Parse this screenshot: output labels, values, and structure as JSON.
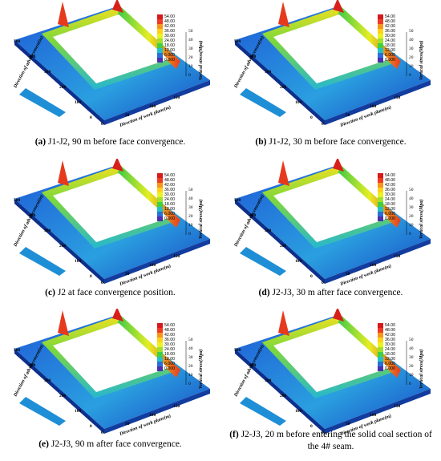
{
  "legend": {
    "ticks": [
      "54.00",
      "48.00",
      "42.00",
      "36.00",
      "30.00",
      "24.00",
      "18.00",
      "12.00",
      "6.000",
      "0.000"
    ],
    "title": "Vertical stress(Mpa)",
    "colors": [
      "#d7191c",
      "#ee3b22",
      "#f7951d",
      "#ffd21a",
      "#eaf21f",
      "#9fe12c",
      "#3bd14a",
      "#22c1c8",
      "#2a6fd9",
      "#4b2fb0"
    ]
  },
  "axes": {
    "x_label": "Direction of work plane(m)",
    "y_label": "Direction of advancement(m)",
    "z_label": "Vertical stress(Mpa)",
    "x_ticks": [
      "0",
      "50",
      "100",
      "150"
    ],
    "y_ticks": [
      "0",
      "100",
      "200",
      "300",
      "400",
      "500"
    ],
    "z_ticks": [
      "0",
      "10",
      "20",
      "30",
      "40",
      "50"
    ]
  },
  "panels": [
    {
      "id": "a",
      "tag": "(a)",
      "caption": " J1-J2, 90 m before face convergence."
    },
    {
      "id": "b",
      "tag": "(b)",
      "caption": " J1-J2, 30 m before face convergence."
    },
    {
      "id": "c",
      "tag": "(c)",
      "caption": " J2 at face convergence position."
    },
    {
      "id": "d",
      "tag": "(d)",
      "caption": " J2-J3, 30 m after face convergence."
    },
    {
      "id": "e",
      "tag": "(e)",
      "caption": " J2-J3, 90 m after face convergence."
    },
    {
      "id": "f",
      "tag": "(f)",
      "caption": " J2-J3, 20 m before entering the solid coal section of the 4# seam."
    }
  ]
}
